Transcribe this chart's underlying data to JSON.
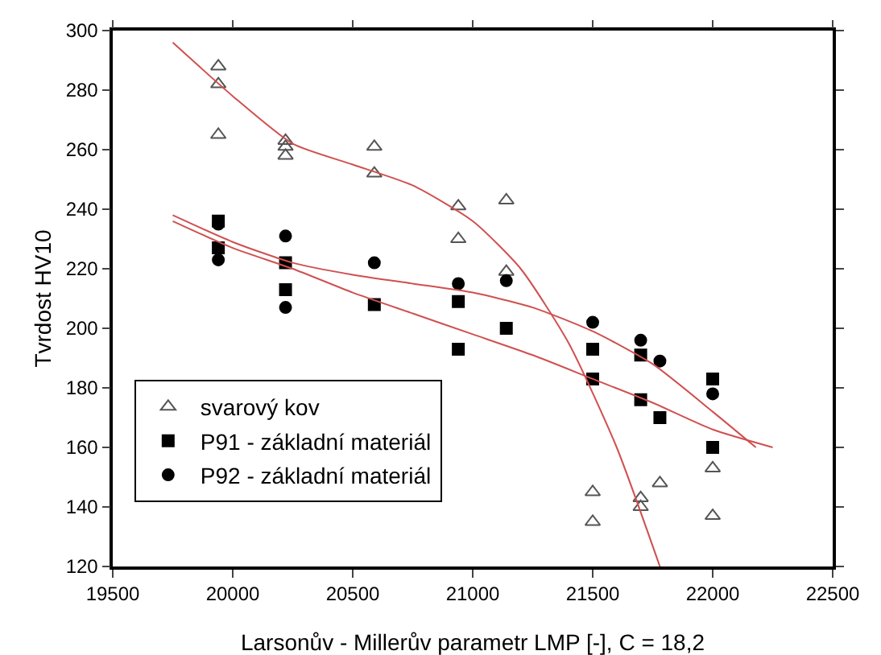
{
  "chart_data": {
    "type": "scatter",
    "xlabel": "Larsonův - Millerův parametr LMP [-], C = 18,2",
    "ylabel": "Tvrdost HV10",
    "xlim": [
      19500,
      22500
    ],
    "xticks": [
      19500,
      20000,
      20500,
      21000,
      21500,
      22000,
      22500
    ],
    "ylim": [
      120,
      300
    ],
    "yticks": [
      120,
      140,
      160,
      180,
      200,
      220,
      240,
      260,
      280,
      300
    ],
    "grid": false,
    "legend": "bottom left",
    "series": [
      {
        "name": "svarový kov",
        "marker": "triangle-open",
        "color": "#555555",
        "x": [
          19940,
          19940,
          19940,
          20220,
          20220,
          20220,
          20590,
          20590,
          20940,
          20940,
          21140,
          21140,
          21500,
          21500,
          21700,
          21700,
          21780,
          22000,
          22000
        ],
        "values": [
          288,
          282,
          265,
          263,
          261,
          258,
          261,
          252,
          241,
          230,
          243,
          219,
          145,
          135,
          143,
          140,
          148,
          153,
          137
        ]
      },
      {
        "name": "P91 - základní materiál",
        "marker": "square",
        "color": "#000000",
        "x": [
          19940,
          19940,
          20220,
          20220,
          20590,
          20940,
          20940,
          21140,
          21500,
          21500,
          21700,
          21700,
          21780,
          22000,
          22000
        ],
        "values": [
          236,
          227,
          222,
          213,
          208,
          209,
          193,
          200,
          193,
          183,
          191,
          176,
          170,
          183,
          160
        ]
      },
      {
        "name": "P92 - základní materiál",
        "marker": "circle",
        "color": "#000000",
        "x": [
          19940,
          19940,
          20220,
          20220,
          20590,
          20940,
          21140,
          21500,
          21700,
          21780,
          22000
        ],
        "values": [
          235,
          223,
          231,
          207,
          222,
          215,
          216,
          202,
          196,
          189,
          178
        ]
      },
      {
        "type": "line",
        "marker": "none",
        "color": "#d05050",
        "x": [
          19750,
          20000,
          20250,
          20500,
          20750,
          21000,
          21200,
          21400,
          21600,
          21780
        ],
        "values": [
          296,
          278,
          262,
          255,
          248,
          236,
          220,
          195,
          160,
          120
        ]
      },
      {
        "type": "line",
        "marker": "none",
        "color": "#d05050",
        "x": [
          19750,
          20000,
          20250,
          20500,
          20750,
          21000,
          21250,
          21500,
          21750,
          22000,
          22180
        ],
        "values": [
          238,
          229,
          222,
          218,
          215,
          212,
          207,
          199,
          188,
          172,
          160
        ]
      },
      {
        "type": "line",
        "marker": "none",
        "color": "#d05050",
        "x": [
          19750,
          20000,
          20250,
          20500,
          20750,
          21000,
          21250,
          21500,
          21750,
          22000,
          22250
        ],
        "values": [
          236,
          227,
          220,
          212,
          205,
          198,
          191,
          183,
          175,
          166,
          160
        ]
      }
    ]
  }
}
